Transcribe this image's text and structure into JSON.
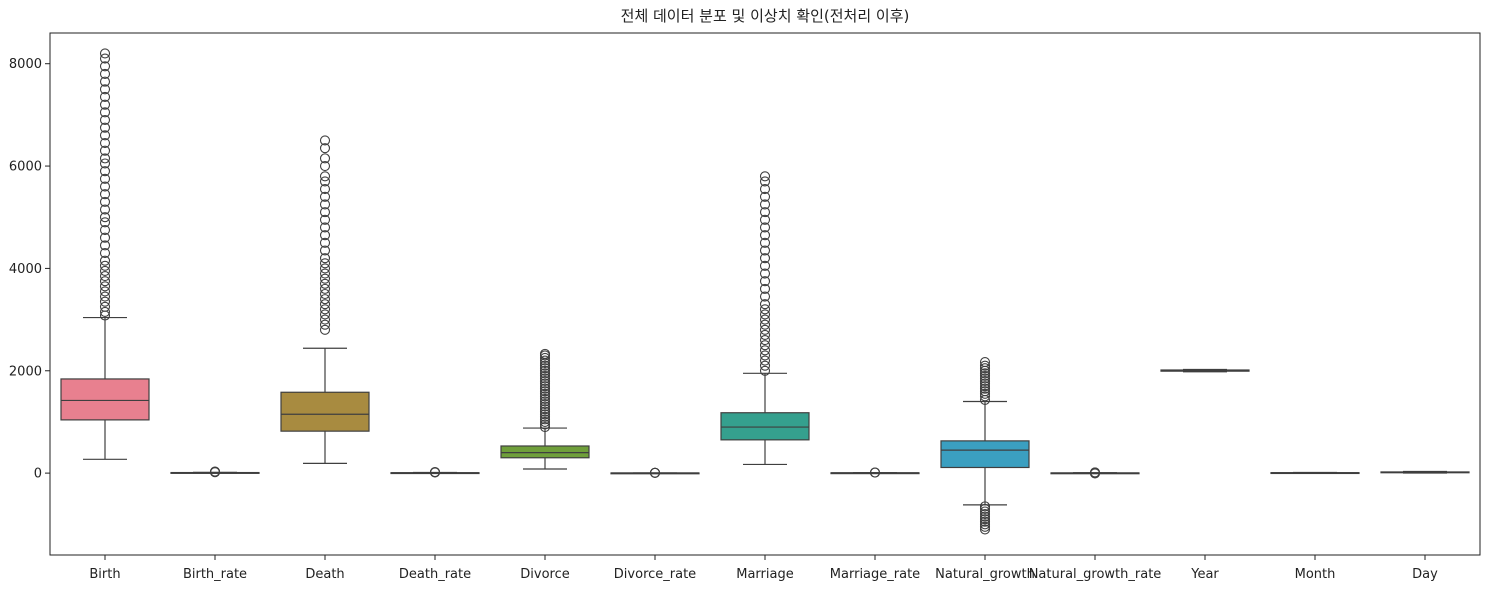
{
  "chart_data": {
    "type": "box",
    "title": "전체 데이터 분포 및 이상치 확인(전처리 이후)",
    "xlabel": "",
    "ylabel": "",
    "ylim": [
      -1600,
      8600
    ],
    "yticks": [
      0,
      2000,
      4000,
      6000,
      8000
    ],
    "grid": false,
    "legend": "none",
    "categories": [
      "Birth",
      "Birth_rate",
      "Death",
      "Death_rate",
      "Divorce",
      "Divorce_rate",
      "Marriage",
      "Marriage_rate",
      "Natural_growth",
      "Natural_growth_rate",
      "Year",
      "Month",
      "Day"
    ],
    "boxes": [
      {
        "name": "Birth",
        "color": "#e8808f",
        "min": 270,
        "q1": 1040,
        "median": 1420,
        "q3": 1840,
        "max": 3040,
        "outliers": [
          3080,
          3150,
          3250,
          3350,
          3450,
          3550,
          3650,
          3750,
          3850,
          3950,
          4050,
          4150,
          4300,
          4450,
          4600,
          4750,
          4900,
          5000,
          5150,
          5300,
          5450,
          5600,
          5750,
          5900,
          6050,
          6150,
          6300,
          6450,
          6600,
          6750,
          6900,
          7050,
          7200,
          7350,
          7500,
          7650,
          7800,
          7950,
          8100,
          8200
        ]
      },
      {
        "name": "Birth_rate",
        "color": "#d99a5c",
        "min": 3,
        "q1": 6,
        "median": 8,
        "q3": 11,
        "max": 16,
        "outliers": [
          18,
          22,
          26,
          30
        ]
      },
      {
        "name": "Death",
        "color": "#a88b40",
        "min": 190,
        "q1": 820,
        "median": 1150,
        "q3": 1580,
        "max": 2440,
        "outliers": [
          2800,
          2900,
          3000,
          3100,
          3200,
          3300,
          3400,
          3500,
          3600,
          3700,
          3800,
          3900,
          4000,
          4100,
          4200,
          4350,
          4500,
          4650,
          4800,
          4950,
          5100,
          5250,
          5400,
          5550,
          5700,
          5800,
          6000,
          6150,
          6350,
          6500
        ]
      },
      {
        "name": "Death_rate",
        "color": "#8e9a3e",
        "min": 2,
        "q1": 5,
        "median": 6,
        "q3": 8,
        "max": 12,
        "outliers": [
          14,
          17,
          20
        ]
      },
      {
        "name": "Divorce",
        "color": "#6f9f3a",
        "min": 80,
        "q1": 300,
        "median": 400,
        "q3": 530,
        "max": 880,
        "outliers": [
          900,
          950,
          1000,
          1050,
          1100,
          1150,
          1200,
          1250,
          1300,
          1350,
          1400,
          1450,
          1500,
          1550,
          1600,
          1650,
          1700,
          1750,
          1800,
          1850,
          1900,
          1950,
          2000,
          2050,
          2100,
          2150,
          2200,
          2250,
          2300,
          2330
        ]
      },
      {
        "name": "Divorce_rate",
        "color": "#45a66c",
        "min": 1,
        "q1": 2,
        "median": 2.5,
        "q3": 3,
        "max": 4,
        "outliers": [
          5,
          6,
          7
        ]
      },
      {
        "name": "Marriage",
        "color": "#35a08e",
        "min": 170,
        "q1": 650,
        "median": 900,
        "q3": 1180,
        "max": 1950,
        "outliers": [
          2000,
          2100,
          2200,
          2300,
          2400,
          2500,
          2600,
          2700,
          2800,
          2900,
          3000,
          3100,
          3200,
          3300,
          3450,
          3600,
          3750,
          3900,
          4050,
          4200,
          4350,
          4500,
          4650,
          4800,
          4950,
          5100,
          5250,
          5400,
          5550,
          5700,
          5800
        ]
      },
      {
        "name": "Marriage_rate",
        "color": "#37a0a8",
        "min": 2,
        "q1": 4,
        "median": 5,
        "q3": 6,
        "max": 8,
        "outliers": [
          10,
          12
        ]
      },
      {
        "name": "Natural_growth",
        "color": "#3b9fc0",
        "min": -620,
        "q1": 110,
        "median": 450,
        "q3": 630,
        "max": 1400,
        "outliers": [
          1430,
          1500,
          1550,
          1600,
          1650,
          1700,
          1750,
          1800,
          1850,
          1900,
          1950,
          2000,
          2050,
          2100,
          2170,
          -650,
          -700,
          -750,
          -800,
          -850,
          -900,
          -950,
          -1000,
          -1050,
          -1100
        ]
      },
      {
        "name": "Natural_growth_rate",
        "color": "#6a9fd8",
        "min": -3,
        "q1": 0,
        "median": 2,
        "q3": 4,
        "max": 8,
        "outliers": [
          10,
          13,
          -6
        ]
      },
      {
        "name": "Year",
        "color": "#a48fd8",
        "min": 1981,
        "q1": 1992,
        "median": 2004,
        "q3": 2015,
        "max": 2025,
        "outliers": []
      },
      {
        "name": "Month",
        "color": "#c98ad6",
        "min": 1,
        "q1": 3,
        "median": 6,
        "q3": 9,
        "max": 12,
        "outliers": []
      },
      {
        "name": "Day",
        "color": "#e58ac0",
        "min": 1,
        "q1": 8,
        "median": 16,
        "q3": 23,
        "max": 31,
        "outliers": []
      }
    ]
  }
}
